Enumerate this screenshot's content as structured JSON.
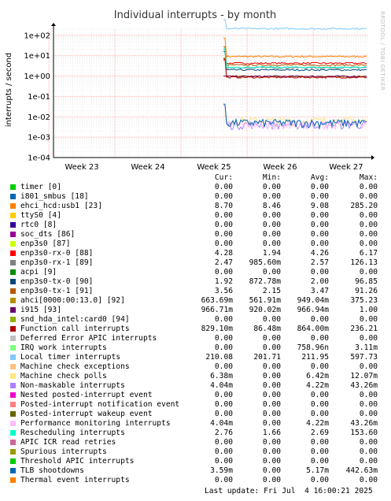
{
  "chart_data": {
    "type": "line",
    "title": "Individual interrupts - by month",
    "ylabel": "interrupts / second",
    "yscale": "log",
    "ylim": [
      0.0001,
      200
    ],
    "yticks": [
      "1e+02",
      "1e+01",
      "1e+00",
      "1e-01",
      "1e-02",
      "1e-03",
      "1e-04"
    ],
    "yticks_values": [
      100,
      10,
      1,
      0.1,
      0.01,
      0.001,
      0.0001
    ],
    "xticks": [
      "Week 23",
      "Week 24",
      "Week 25",
      "Week 26",
      "Week 27"
    ],
    "grid": true,
    "watermark": "RRDTOOL / TOBI OETIKER",
    "columns": [
      "Cur:",
      "Min:",
      "Avg:",
      "Max:"
    ],
    "series": [
      {
        "name": "timer [0]",
        "color": "#00cc00",
        "cur": "0.00",
        "min": "0.00",
        "avg": "0.00",
        "max": "0.00"
      },
      {
        "name": "i801_smbus [18]",
        "color": "#0066b3",
        "cur": "0.00",
        "min": "0.00",
        "avg": "0.00",
        "max": "0.00"
      },
      {
        "name": "ehci_hcd:usb1 [23]",
        "color": "#ff8000",
        "cur": "8.70",
        "min": "8.46",
        "avg": "9.08",
        "max": "285.20"
      },
      {
        "name": "ttyS0 [4]",
        "color": "#ffcc00",
        "cur": "0.00",
        "min": "0.00",
        "avg": "0.00",
        "max": "0.00"
      },
      {
        "name": "rtc0 [8]",
        "color": "#330099",
        "cur": "0.00",
        "min": "0.00",
        "avg": "0.00",
        "max": "0.00"
      },
      {
        "name": "soc_dts [86]",
        "color": "#990099",
        "cur": "0.00",
        "min": "0.00",
        "avg": "0.00",
        "max": "0.00"
      },
      {
        "name": "enp3s0 [87]",
        "color": "#ccff00",
        "cur": "0.00",
        "min": "0.00",
        "avg": "0.00",
        "max": "0.00"
      },
      {
        "name": "enp3s0-rx-0 [88]",
        "color": "#ff0000",
        "cur": "4.28",
        "min": "1.94",
        "avg": "4.26",
        "max": "6.17"
      },
      {
        "name": "enp3s0-rx-1 [89]",
        "color": "#808080",
        "cur": "2.47",
        "min": "985.60m",
        "avg": "2.57",
        "max": "126.13"
      },
      {
        "name": "acpi [9]",
        "color": "#008f00",
        "cur": "0.00",
        "min": "0.00",
        "avg": "0.00",
        "max": "0.00"
      },
      {
        "name": "enp3s0-tx-0 [90]",
        "color": "#00487d",
        "cur": "1.92",
        "min": "872.78m",
        "avg": "2.00",
        "max": "96.85"
      },
      {
        "name": "enp3s0-tx-1 [91]",
        "color": "#b35a00",
        "cur": "3.56",
        "min": "2.15",
        "avg": "3.47",
        "max": "91.26"
      },
      {
        "name": "ahci[0000:00:13.0] [92]",
        "color": "#b38f00",
        "cur": "663.69m",
        "min": "561.91m",
        "avg": "949.04m",
        "max": "375.23"
      },
      {
        "name": "i915 [93]",
        "color": "#6b006b",
        "cur": "966.71m",
        "min": "920.02m",
        "avg": "966.94m",
        "max": "1.00"
      },
      {
        "name": "snd_hda_intel:card0 [94]",
        "color": "#8fb300",
        "cur": "0.00",
        "min": "0.00",
        "avg": "0.00",
        "max": "0.00"
      },
      {
        "name": "Function call interrupts",
        "color": "#b30000",
        "cur": "829.10m",
        "min": "86.48m",
        "avg": "864.00m",
        "max": "236.21"
      },
      {
        "name": "Deferred Error APIC interrupts",
        "color": "#bebebe",
        "cur": "0.00",
        "min": "0.00",
        "avg": "0.00",
        "max": "0.00"
      },
      {
        "name": "IRQ work interrupts",
        "color": "#80ff80",
        "cur": "0.00",
        "min": "0.00",
        "avg": "758.96n",
        "max": "3.11m"
      },
      {
        "name": "Local timer interrupts",
        "color": "#80c9ff",
        "cur": "210.08",
        "min": "201.71",
        "avg": "211.95",
        "max": "597.73"
      },
      {
        "name": "Machine check exceptions",
        "color": "#ffc080",
        "cur": "0.00",
        "min": "0.00",
        "avg": "0.00",
        "max": "0.00"
      },
      {
        "name": "Machine check polls",
        "color": "#ffe680",
        "cur": "6.38m",
        "min": "0.00",
        "avg": "6.42m",
        "max": "12.07m"
      },
      {
        "name": "Non-maskable interrupts",
        "color": "#aa80ff",
        "cur": "4.04m",
        "min": "0.00",
        "avg": "4.22m",
        "max": "43.26m"
      },
      {
        "name": "Nested posted-interrupt event",
        "color": "#ee00cc",
        "cur": "0.00",
        "min": "0.00",
        "avg": "0.00",
        "max": "0.00"
      },
      {
        "name": "Posted-interrupt notification event",
        "color": "#ff8080",
        "cur": "0.00",
        "min": "0.00",
        "avg": "0.00",
        "max": "0.00"
      },
      {
        "name": "Posted-interrupt wakeup event",
        "color": "#666600",
        "cur": "0.00",
        "min": "0.00",
        "avg": "0.00",
        "max": "0.00"
      },
      {
        "name": "Performance monitoring interrupts",
        "color": "#ffbfff",
        "cur": "4.04m",
        "min": "0.00",
        "avg": "4.22m",
        "max": "43.26m"
      },
      {
        "name": "Rescheduling interrupts",
        "color": "#00ffcc",
        "cur": "2.76",
        "min": "1.66",
        "avg": "2.69",
        "max": "153.60"
      },
      {
        "name": "APIC ICR read retries",
        "color": "#cc6699",
        "cur": "0.00",
        "min": "0.00",
        "avg": "0.00",
        "max": "0.00"
      },
      {
        "name": "Spurious interrupts",
        "color": "#999900",
        "cur": "0.00",
        "min": "0.00",
        "avg": "0.00",
        "max": "0.00"
      },
      {
        "name": "Threshold APIC interrupts",
        "color": "#00cc00",
        "cur": "0.00",
        "min": "0.00",
        "avg": "0.00",
        "max": "0.00"
      },
      {
        "name": "TLB shootdowns",
        "color": "#0066b3",
        "cur": "3.59m",
        "min": "0.00",
        "avg": "5.17m",
        "max": "442.63m"
      },
      {
        "name": "Thermal event interrupts",
        "color": "#ff8000",
        "cur": "0.00",
        "min": "0.00",
        "avg": "0.00",
        "max": "0.00"
      }
    ],
    "last_update": "Last update: Fri Jul  4 16:00:21 2025"
  }
}
